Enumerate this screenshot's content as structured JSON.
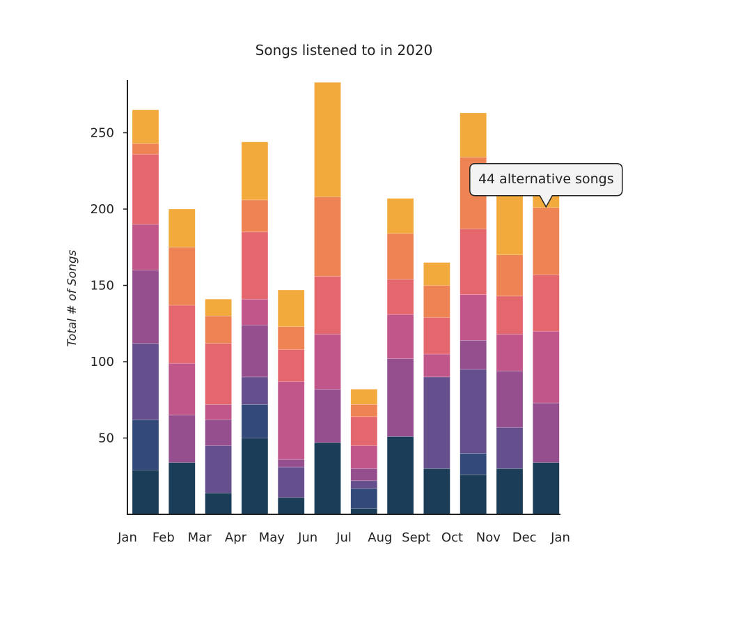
{
  "chart_data": {
    "type": "bar",
    "stacked": true,
    "title": "Songs listened to in 2020",
    "xlabel": "",
    "ylabel": "Total # of Songs",
    "x_tick_labels": [
      "Jan",
      "Feb",
      "Mar",
      "Apr",
      "May",
      "Jun",
      "Jul",
      "Aug",
      "Sept",
      "Oct",
      "Nov",
      "Dec",
      "Jan"
    ],
    "y_ticks": [
      50,
      100,
      150,
      200,
      250
    ],
    "ylim": [
      0,
      285
    ],
    "grid": false,
    "legend": "none",
    "colors": [
      "#1b3d58",
      "#33497a",
      "#654f8c",
      "#964f8e",
      "#c0568a",
      "#e5676e",
      "#ee8454",
      "#f2aa3d"
    ],
    "series": [
      {
        "values": [
          29,
          34,
          14,
          50,
          11,
          47,
          4,
          51,
          30,
          26,
          30,
          34
        ]
      },
      {
        "values": [
          33,
          0,
          0,
          22,
          0,
          0,
          13,
          0,
          0,
          14,
          0,
          0
        ]
      },
      {
        "values": [
          50,
          0,
          31,
          18,
          20,
          0,
          5,
          0,
          60,
          55,
          27,
          0
        ]
      },
      {
        "values": [
          48,
          31,
          17,
          34,
          5,
          35,
          8,
          51,
          0,
          19,
          37,
          39
        ]
      },
      {
        "values": [
          30,
          34,
          10,
          17,
          51,
          36,
          15,
          29,
          15,
          30,
          24,
          47
        ]
      },
      {
        "values": [
          46,
          38,
          40,
          44,
          21,
          38,
          19,
          23,
          24,
          43,
          25,
          37
        ]
      },
      {
        "values": [
          7,
          38,
          18,
          21,
          15,
          52,
          8,
          30,
          21,
          47,
          27,
          44
        ]
      },
      {
        "values": [
          22,
          25,
          11,
          38,
          24,
          75,
          10,
          23,
          15,
          29,
          40,
          9
        ]
      }
    ],
    "tooltip": {
      "text": "44 alternative songs",
      "month": 11,
      "series": 6
    }
  }
}
